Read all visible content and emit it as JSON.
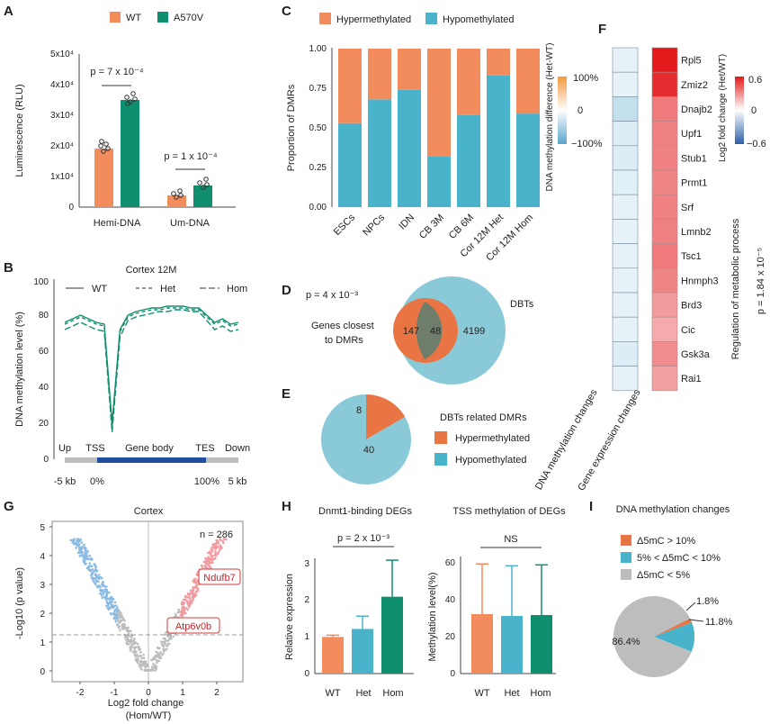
{
  "colors": {
    "orange": "#F28C5C",
    "green": "#0F8F6E",
    "teal": "#4AB3CC",
    "lightblue": "#8ACAD8",
    "gray": "#BDBDBD",
    "navy": "#1F4E9E"
  },
  "panel_letters": [
    "A",
    "B",
    "C",
    "D",
    "E",
    "F",
    "G",
    "H",
    "I"
  ],
  "A": {
    "legend": [
      "WT",
      "A570V"
    ],
    "ylabel": "Luminescence (RLU)",
    "yticks": [
      "0",
      "1x10⁴",
      "2x10⁴",
      "3x10⁴",
      "4x10⁴",
      "5x10⁴"
    ],
    "groups": [
      "Hemi-DNA",
      "Um-DNA"
    ],
    "p": [
      "p = 7 x 10⁻⁴",
      "p = 1 x 10⁻⁴"
    ]
  },
  "B": {
    "title": "Cortex 12M",
    "legend": [
      "WT",
      "Het",
      "Hom"
    ],
    "ylabel": "DNA methylation level (%)",
    "yticks": [
      "0",
      "20",
      "40",
      "60",
      "80",
      "100"
    ],
    "regions": [
      "Up",
      "TSS",
      "Gene body",
      "TES",
      "Down"
    ],
    "xticks": [
      "-5 kb",
      "0%",
      "100%",
      "5 kb"
    ]
  },
  "C": {
    "legend": [
      "Hypermethylated",
      "Hypomethylated"
    ],
    "ylabel": "Proportion of DMRs",
    "yticks": [
      "0.00",
      "0.25",
      "0.50",
      "0.75",
      "1.00"
    ]
  },
  "D": {
    "p": "p = 4 x 10⁻³",
    "left_label_1": "Genes closest",
    "left_label_2": "to DMRs",
    "right_label": "DBTs",
    "only_left": "147",
    "overlap": "48",
    "only_right": "4199"
  },
  "E": {
    "title": "DBTs related DMRs",
    "legend": [
      "Hypermethylated",
      "Hypomethylated"
    ]
  },
  "F": {
    "col_labels": [
      "DNA methylation changes",
      "Gene expression changes"
    ],
    "genes": [
      "Rpl5",
      "Zmiz2",
      "Dnajb2",
      "Upf1",
      "Stub1",
      "Prmt1",
      "Srf",
      "Lmnb2",
      "Tsc1",
      "Hnmph3",
      "Brd3",
      "Cic",
      "Gsk3a",
      "Rai1"
    ],
    "cb1_title": "DNA methylation difference (Het-WT)",
    "cb1_ticks": [
      "100%",
      "0",
      "−100%"
    ],
    "cb2_title": "Log2 fold change (Het/WT)",
    "cb2_ticks": [
      "0.6",
      "0",
      "−0.6"
    ],
    "side_label": "Regulation of metabolic process",
    "side_p": "p = 1.84 x 10⁻⁵"
  },
  "G": {
    "title": "Cortex",
    "n": "n = 286",
    "ylabel": "-Log10 (p value)",
    "xlabel1": "Log2 fold change",
    "xlabel2": "(Hom/WT)",
    "xticks": [
      "-2",
      "-1",
      "0",
      "1",
      "2"
    ],
    "yticks": [
      "0",
      "1",
      "2",
      "3",
      "4",
      "5"
    ],
    "labels": [
      "Ndufb7",
      "Atp6v0b"
    ]
  },
  "H": {
    "left_title": "Dnmt1-binding DEGs",
    "right_title": "TSS methylation of DEGs",
    "left_ylabel": "Relative expression",
    "right_ylabel": "Methylation level(%)",
    "left_yticks": [
      "0",
      "1",
      "2",
      "3"
    ],
    "right_yticks": [
      "0",
      "20",
      "40",
      "60"
    ],
    "p": "p = 2 x 10⁻³",
    "ns": "NS",
    "categories": [
      "WT",
      "Het",
      "Hom"
    ]
  },
  "I": {
    "title": "DNA methylation changes",
    "legend": [
      "Δ5mC > 10%",
      "5% < Δ5mC < 10%",
      "Δ5mC  < 5%"
    ],
    "slice_labels": [
      "1.8%",
      "11.8%",
      "86.4%"
    ]
  },
  "chart_data": [
    {
      "type": "bar",
      "panel": "A",
      "categories": [
        "Hemi-DNA",
        "Um-DNA"
      ],
      "series": [
        {
          "name": "WT",
          "values": [
            19000,
            3800
          ],
          "err": [
            1500,
            1500
          ]
        },
        {
          "name": "A570V",
          "values": [
            35000,
            7000
          ],
          "err": [
            2000,
            2000
          ]
        }
      ],
      "ylabel": "Luminescence (RLU)",
      "ylim": [
        0,
        50000
      ]
    },
    {
      "type": "line",
      "panel": "B",
      "title": "Cortex 12M",
      "ylabel": "DNA methylation level (%)",
      "ylim": [
        0,
        100
      ],
      "series": [
        {
          "name": "WT",
          "values": [
            76,
            78,
            80,
            78,
            76,
            75,
            20,
            72,
            80,
            82,
            83,
            84,
            84,
            85,
            85,
            85,
            84,
            84,
            80,
            76,
            78,
            75,
            76
          ]
        },
        {
          "name": "Het",
          "values": [
            75,
            77,
            79,
            77,
            75,
            74,
            18,
            71,
            79,
            81,
            82,
            83,
            83,
            84,
            84,
            84,
            83,
            83,
            79,
            75,
            77,
            74,
            75
          ]
        },
        {
          "name": "Hom",
          "values": [
            72,
            74,
            76,
            74,
            72,
            71,
            15,
            68,
            77,
            79,
            80,
            81,
            82,
            82,
            83,
            83,
            82,
            82,
            77,
            72,
            74,
            71,
            72
          ]
        }
      ]
    },
    {
      "type": "bar",
      "panel": "C",
      "stacked": true,
      "categories": [
        "ESCs",
        "NPCs",
        "IDN",
        "CB 3M",
        "CB 6M",
        "Cor 12M Het",
        "Cor 12M Hom"
      ],
      "series": [
        {
          "name": "Hypomethylated",
          "values": [
            0.53,
            0.68,
            0.74,
            0.32,
            0.58,
            0.83,
            0.59
          ]
        },
        {
          "name": "Hypermethylated",
          "values": [
            0.47,
            0.32,
            0.26,
            0.68,
            0.42,
            0.17,
            0.41
          ]
        }
      ],
      "ylabel": "Proportion of DMRs",
      "ylim": [
        0,
        1
      ]
    },
    {
      "type": "pie",
      "panel": "E",
      "title": "DBTs related DMRs",
      "labels": [
        "Hypermethylated",
        "Hypomethylated"
      ],
      "values": [
        8,
        40
      ]
    },
    {
      "type": "heatmap",
      "panel": "F",
      "rows": [
        "Rpl5",
        "Zmiz2",
        "Dnajb2",
        "Upf1",
        "Stub1",
        "Prmt1",
        "Srf",
        "Lmnb2",
        "Tsc1",
        "Hnmph3",
        "Brd3",
        "Cic",
        "Gsk3a",
        "Rai1"
      ],
      "columns": [
        "DNA methylation changes",
        "Gene expression changes"
      ],
      "values": [
        [
          -0.15,
          0.6
        ],
        [
          -0.15,
          0.55
        ],
        [
          -0.35,
          0.35
        ],
        [
          -0.2,
          0.33
        ],
        [
          -0.2,
          0.33
        ],
        [
          -0.18,
          0.32
        ],
        [
          -0.15,
          0.33
        ],
        [
          -0.15,
          0.33
        ],
        [
          -0.15,
          0.35
        ],
        [
          -0.15,
          0.32
        ],
        [
          -0.15,
          0.26
        ],
        [
          -0.15,
          0.22
        ],
        [
          -0.2,
          0.3
        ],
        [
          -0.15,
          0.25
        ]
      ]
    },
    {
      "type": "scatter",
      "panel": "G",
      "title": "Cortex",
      "xlabel": "Log2 fold change (Hom/WT)",
      "ylabel": "-Log10 (p value)",
      "xlim": [
        -2.6,
        2.6
      ],
      "ylim": [
        0,
        5
      ],
      "threshold": 1.3
    },
    {
      "type": "bar",
      "panel": "H-left",
      "title": "Dnmt1-binding DEGs",
      "categories": [
        "WT",
        "Het",
        "Hom"
      ],
      "values": [
        1.0,
        1.22,
        2.1
      ],
      "err": [
        0.05,
        0.35,
        1.0
      ],
      "ylabel": "Relative expression",
      "ylim": [
        0,
        3.2
      ]
    },
    {
      "type": "bar",
      "panel": "H-right",
      "title": "TSS methylation of DEGs",
      "categories": [
        "WT",
        "Het",
        "Hom"
      ],
      "values": [
        32,
        31,
        31.5
      ],
      "err": [
        27,
        27,
        27
      ],
      "ylabel": "Methylation level(%)",
      "ylim": [
        0,
        63
      ]
    },
    {
      "type": "pie",
      "panel": "I",
      "title": "DNA methylation changes",
      "labels": [
        "Δ5mC > 10%",
        "5% < Δ5mC < 10%",
        "Δ5mC  < 5%"
      ],
      "values": [
        1.8,
        11.8,
        86.4
      ]
    }
  ]
}
